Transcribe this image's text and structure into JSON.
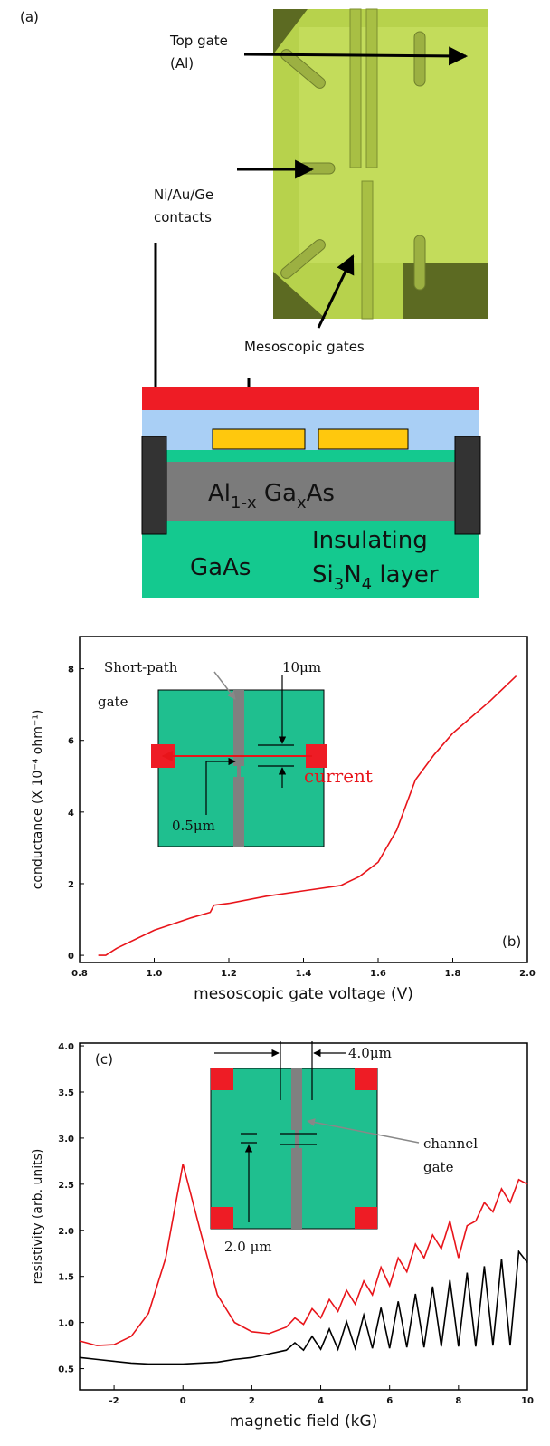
{
  "diagram": {
    "panel_label": "(a)",
    "top_gate": [
      "Top gate",
      "(Al)"
    ],
    "contacts": [
      "Ni/Au/Ge",
      "contacts"
    ],
    "mesoscopic": "Mesoscopic gates",
    "algaas": [
      "Al",
      "1-x",
      " Ga",
      "x",
      "As"
    ],
    "gaas": "GaAs",
    "insulating": "Insulating",
    "si3n4": [
      "Si",
      "3",
      "N",
      "4",
      " layer"
    ]
  },
  "chart_data": [
    {
      "type": "line",
      "panel_label": "(b)",
      "xlabel": "mesoscopic gate voltage (V)",
      "ylabel": "conductance (X 10⁻⁴ ohm⁻¹)",
      "annotations": [
        "Short-path",
        "gate",
        "10μm",
        "current",
        "0.5μm"
      ],
      "x": [
        0.85,
        0.87,
        0.9,
        1.0,
        1.1,
        1.15,
        1.16,
        1.2,
        1.3,
        1.4,
        1.5,
        1.55,
        1.6,
        1.65,
        1.7,
        1.75,
        1.8,
        1.9,
        1.97
      ],
      "values": [
        0.0,
        0.0,
        0.2,
        0.7,
        1.05,
        1.2,
        1.4,
        1.45,
        1.65,
        1.8,
        1.95,
        2.2,
        2.6,
        3.5,
        4.9,
        5.6,
        6.2,
        7.1,
        7.8
      ],
      "color": "#e8141a",
      "xlim": [
        0.8,
        2.0
      ],
      "xticks": [
        0.8,
        {
          "value": 1,
          "label": "1.0"
        },
        1.2,
        1.4,
        1.6,
        1.8,
        {
          "value": 2,
          "label": "2.0"
        }
      ],
      "ylim": [
        -0.2,
        8.9
      ],
      "yticks": [
        0,
        2,
        4,
        6,
        8
      ]
    },
    {
      "type": "line",
      "panel_label": "(c)",
      "xlabel": "magnetic field (kG)",
      "ylabel": "resistivity (arb. units)",
      "annotations": [
        "4.0μm",
        "channel",
        "gate",
        "2.0 μm"
      ],
      "x": [
        -3,
        -2.5,
        -2,
        -1.5,
        -1,
        -0.5,
        0,
        0.5,
        1,
        1.5,
        2,
        2.5,
        3,
        3.25,
        3.5,
        3.75,
        4,
        4.25,
        4.5,
        4.75,
        5,
        5.25,
        5.5,
        5.75,
        6,
        6.25,
        6.5,
        6.75,
        7,
        7.25,
        7.5,
        7.75,
        8,
        8.25,
        8.5,
        8.75,
        9,
        9.25,
        9.5,
        9.75,
        10
      ],
      "series": [
        {
          "color": "#e8141a",
          "values": [
            0.8,
            0.75,
            0.76,
            0.85,
            1.1,
            1.7,
            2.72,
            2.0,
            1.3,
            1.0,
            0.9,
            0.88,
            0.95,
            1.05,
            0.98,
            1.15,
            1.05,
            1.25,
            1.12,
            1.35,
            1.2,
            1.45,
            1.3,
            1.6,
            1.4,
            1.7,
            1.55,
            1.85,
            1.7,
            1.95,
            1.8,
            2.1,
            1.7,
            2.05,
            2.1,
            2.3,
            2.2,
            2.45,
            2.3,
            2.55,
            2.5
          ]
        },
        {
          "color": "#000000",
          "values": [
            0.62,
            0.6,
            0.58,
            0.56,
            0.55,
            0.55,
            0.55,
            0.56,
            0.57,
            0.6,
            0.62,
            0.66,
            0.7,
            0.78,
            0.7,
            0.85,
            0.71,
            0.93,
            0.71,
            1.01,
            0.72,
            1.08,
            0.72,
            1.16,
            0.72,
            1.23,
            0.73,
            1.31,
            0.73,
            1.39,
            0.74,
            1.46,
            0.74,
            1.54,
            0.74,
            1.61,
            0.75,
            1.69,
            0.75,
            1.77,
            1.65
          ]
        }
      ],
      "xlim": [
        -3,
        10
      ],
      "xticks": [
        -2,
        0,
        2,
        4,
        6,
        8,
        10
      ],
      "ylim": [
        0.27,
        4.03
      ],
      "yticks": [
        0.5,
        {
          "value": 1,
          "label": "1.0"
        },
        1.5,
        {
          "value": 2,
          "label": "2.0"
        },
        2.5,
        {
          "value": 3,
          "label": "3.0"
        },
        3.5,
        {
          "value": 4,
          "label": "4.0"
        }
      ]
    }
  ]
}
